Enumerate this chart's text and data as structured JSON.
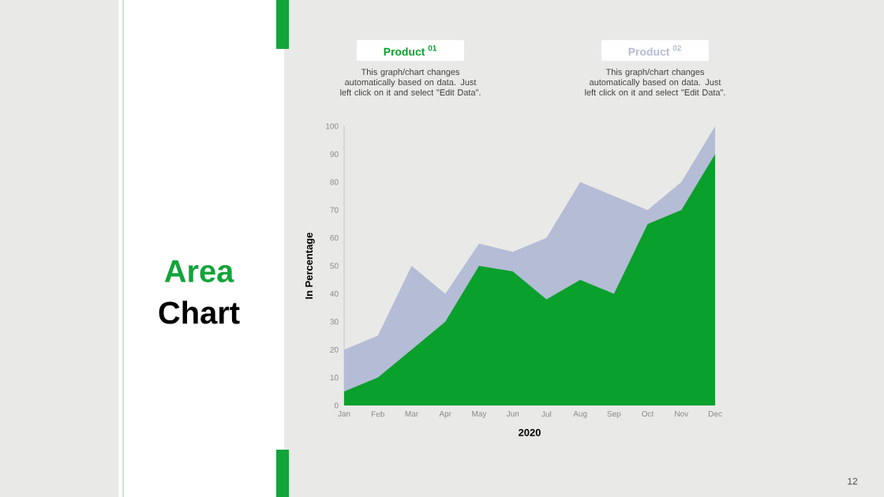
{
  "chart_data": {
    "type": "area",
    "title": "Area",
    "subtitle": "Chart",
    "xlabel": "2020",
    "ylabel": "In Percentage",
    "categories": [
      "Jan",
      "Feb",
      "Mar",
      "Apr",
      "May",
      "Jun",
      "Jul",
      "Aug",
      "Sep",
      "Oct",
      "Nov",
      "Dec"
    ],
    "series": [
      {
        "name": "Product $^{01}$",
        "color": "#0aa02c",
        "values": [
          5,
          10,
          20,
          30,
          50,
          48,
          38,
          45,
          40,
          65,
          70,
          90
        ]
      },
      {
        "name": "Product $^{02}$",
        "color": "#b4bcd6",
        "values": [
          20,
          25,
          50,
          40,
          58,
          55,
          60,
          80,
          75,
          70,
          80,
          100
        ]
      }
    ],
    "ylim": [
      0,
      100
    ],
    "yticks": [
      0,
      10,
      20,
      30,
      40,
      50,
      60,
      70,
      80,
      90,
      100
    ],
    "legend": "top",
    "annotations": [
      "This graph/chart changes automatically based on data. Just left click on it and select \"Edit Data\".",
      "This graph/chart changes automatically based on data. Just left click on it and select \"Edit Data\".",
      "12"
    ]
  }
}
